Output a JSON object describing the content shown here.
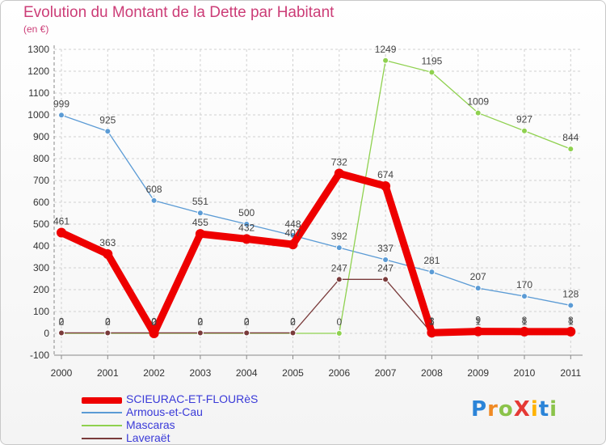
{
  "chart_data": {
    "type": "line",
    "title": "Evolution du Montant de la Dette par Habitant",
    "subtitle": "(en €)",
    "xlabel": "",
    "ylabel": "",
    "ylim": [
      -100,
      1300
    ],
    "yticks": [
      "-100",
      "0",
      "100",
      "200",
      "300",
      "400",
      "500",
      "600",
      "700",
      "800",
      "900",
      "1000",
      "1100",
      "1200",
      "1300"
    ],
    "categories": [
      "2000",
      "2001",
      "2002",
      "2003",
      "2004",
      "2005",
      "2006",
      "2007",
      "2008",
      "2009",
      "2010",
      "2011"
    ],
    "series": [
      {
        "name": "SCIEURAC-ET-FLOURèS",
        "color": "#ee0000",
        "values": [
          461,
          363,
          0,
          455,
          432,
          407,
          732,
          674,
          3,
          9,
          8,
          8
        ],
        "labels": [
          "461",
          "363",
          "0",
          "455",
          "432",
          "407",
          "732",
          "674",
          "3",
          "9",
          "8",
          "8"
        ]
      },
      {
        "name": "Armous-et-Cau",
        "color": "#5b9bd5",
        "values": [
          999,
          925,
          608,
          551,
          500,
          448,
          392,
          337,
          281,
          207,
          170,
          128
        ],
        "labels": [
          "999",
          "925",
          "608",
          "551",
          "500",
          "448",
          "392",
          "337",
          "281",
          "207",
          "170",
          "128"
        ]
      },
      {
        "name": "Mascaras",
        "color": "#8fd14f",
        "values": [
          0,
          0,
          0,
          0,
          0,
          0,
          0,
          1249,
          1195,
          1009,
          927,
          844
        ],
        "labels": [
          "0",
          "0",
          "0",
          "0",
          "0",
          "0",
          "0",
          "1249",
          "1195",
          "1009",
          "927",
          "844"
        ]
      },
      {
        "name": "Laveraët",
        "color": "#7a3b3b",
        "values": [
          2,
          2,
          2,
          2,
          2,
          2,
          247,
          247,
          1,
          1,
          1,
          1
        ],
        "labels": [
          "2",
          "2",
          "2",
          "2",
          "2",
          "2",
          "247",
          "247",
          "1",
          "1",
          "1",
          "1"
        ]
      }
    ],
    "legend_position": "bottom-left"
  },
  "logo": {
    "text": "ProXiti",
    "letters": [
      "P",
      "r",
      "o",
      "X",
      "i",
      "t",
      "i"
    ],
    "colors": [
      "#2b84d8",
      "#f08a24",
      "#8bc34a",
      "#e53935",
      "#ffb300",
      "#2b84d8",
      "#8bc34a"
    ]
  }
}
